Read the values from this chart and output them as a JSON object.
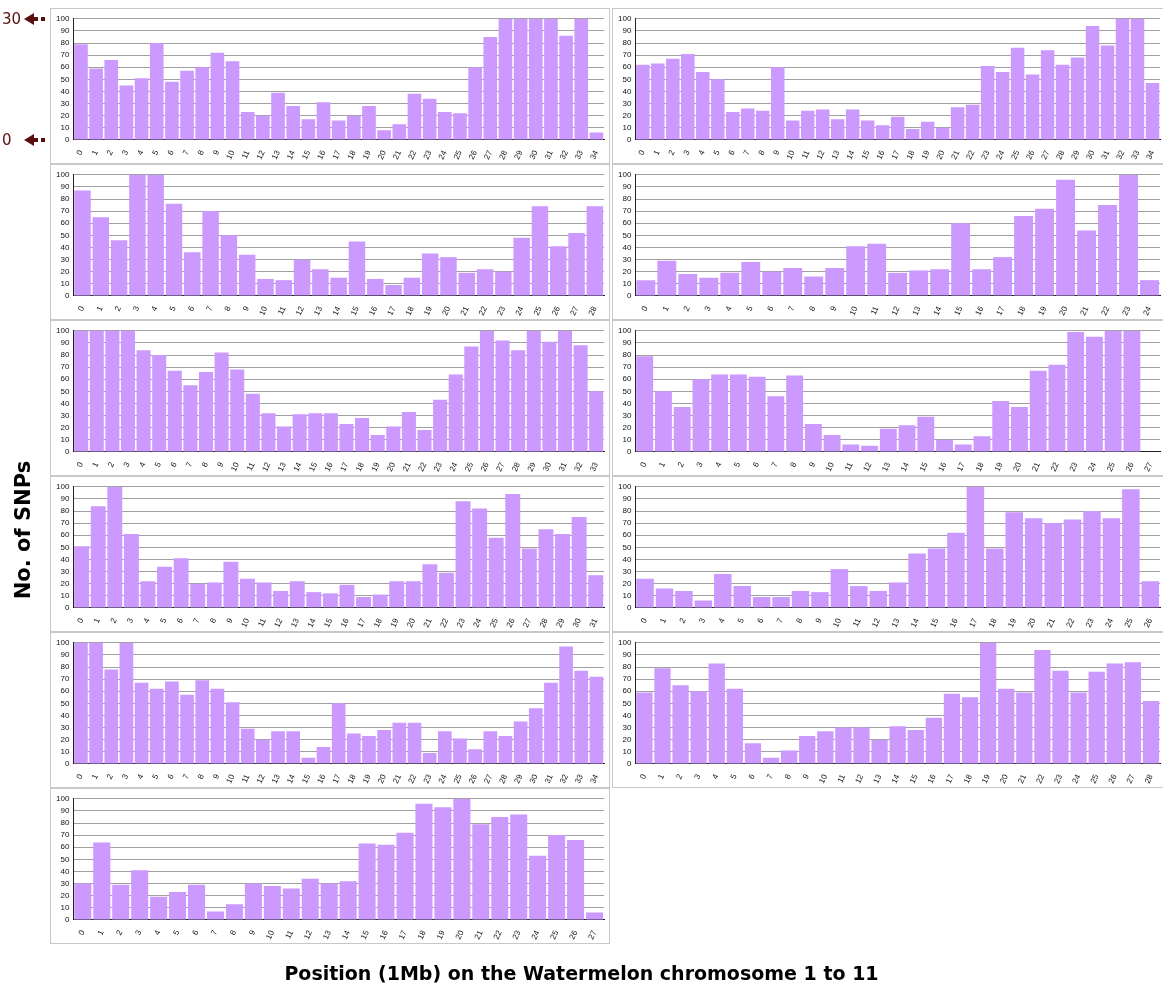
{
  "chart_data": [
    {
      "type": "bar",
      "annotations": [
        "30",
        "0"
      ],
      "categories": [
        "0",
        "1",
        "2",
        "3",
        "4",
        "5",
        "6",
        "7",
        "8",
        "9",
        "10",
        "11",
        "12",
        "13",
        "14",
        "15",
        "16",
        "17",
        "18",
        "19",
        "20",
        "21",
        "22",
        "23",
        "24",
        "25",
        "26",
        "27",
        "28",
        "29",
        "30",
        "31",
        "32",
        "33",
        "34"
      ],
      "values": [
        79,
        59,
        66,
        45,
        51,
        80,
        48,
        57,
        60,
        72,
        65,
        23,
        20,
        39,
        28,
        17,
        31,
        16,
        20,
        28,
        8,
        13,
        38,
        34,
        23,
        22,
        60,
        85,
        100,
        100,
        100,
        100,
        86,
        100,
        6
      ],
      "color": "#cc99ff",
      "ylim": [
        0,
        100
      ],
      "yticks": [
        0,
        10,
        20,
        30,
        40,
        50,
        60,
        70,
        80,
        90,
        100
      ],
      "grid": "y"
    },
    {
      "type": "bar",
      "categories": [
        "0",
        "1",
        "2",
        "3",
        "4",
        "5",
        "6",
        "7",
        "8",
        "9",
        "10",
        "11",
        "12",
        "13",
        "14",
        "15",
        "16",
        "17",
        "18",
        "19",
        "20",
        "21",
        "22",
        "23",
        "24",
        "25",
        "26",
        "27",
        "28",
        "29",
        "30",
        "31",
        "32",
        "33",
        "34"
      ],
      "values": [
        62,
        63,
        67,
        71,
        56,
        50,
        23,
        26,
        24,
        60,
        16,
        24,
        25,
        17,
        25,
        16,
        12,
        19,
        9,
        15,
        10,
        27,
        29,
        61,
        56,
        76,
        54,
        74,
        62,
        68,
        94,
        78,
        100,
        100,
        47
      ],
      "color": "#cc99ff",
      "ylim": [
        0,
        100
      ],
      "yticks": [
        0,
        10,
        20,
        30,
        40,
        50,
        60,
        70,
        80,
        90,
        100
      ],
      "grid": "y"
    },
    {
      "type": "bar",
      "categories": [
        "0",
        "1",
        "2",
        "3",
        "4",
        "5",
        "6",
        "7",
        "8",
        "9",
        "10",
        "11",
        "12",
        "13",
        "14",
        "15",
        "16",
        "17",
        "18",
        "19",
        "20",
        "21",
        "22",
        "23",
        "24",
        "25",
        "26",
        "27",
        "28"
      ],
      "values": [
        87,
        65,
        46,
        100,
        100,
        76,
        36,
        70,
        50,
        34,
        14,
        13,
        30,
        22,
        15,
        45,
        14,
        9,
        15,
        35,
        32,
        19,
        22,
        20,
        48,
        74,
        41,
        52,
        74
      ],
      "color": "#cc99ff",
      "ylim": [
        0,
        100
      ],
      "yticks": [
        0,
        10,
        20,
        30,
        40,
        50,
        60,
        70,
        80,
        90,
        100
      ],
      "grid": "y"
    },
    {
      "type": "bar",
      "categories": [
        "0",
        "1",
        "2",
        "3",
        "4",
        "5",
        "6",
        "7",
        "8",
        "9",
        "10",
        "11",
        "12",
        "13",
        "14",
        "15",
        "16",
        "17",
        "18",
        "19",
        "20",
        "21",
        "22",
        "23",
        "24"
      ],
      "values": [
        13,
        29,
        18,
        15,
        19,
        28,
        20,
        23,
        16,
        23,
        41,
        43,
        19,
        21,
        22,
        60,
        22,
        32,
        66,
        72,
        96,
        54,
        75,
        100,
        13
      ],
      "color": "#cc99ff",
      "ylim": [
        0,
        100
      ],
      "yticks": [
        0,
        10,
        20,
        30,
        40,
        50,
        60,
        70,
        80,
        90,
        100
      ],
      "grid": "y"
    },
    {
      "type": "bar",
      "categories": [
        "0",
        "1",
        "2",
        "3",
        "4",
        "5",
        "6",
        "7",
        "8",
        "9",
        "10",
        "11",
        "12",
        "13",
        "14",
        "15",
        "16",
        "17",
        "18",
        "19",
        "20",
        "21",
        "22",
        "23",
        "24",
        "25",
        "26",
        "27",
        "28",
        "29",
        "30",
        "31",
        "32",
        "33"
      ],
      "values": [
        100,
        100,
        100,
        100,
        84,
        80,
        67,
        55,
        66,
        82,
        68,
        48,
        32,
        21,
        31,
        32,
        32,
        23,
        28,
        14,
        21,
        33,
        18,
        43,
        64,
        87,
        100,
        92,
        84,
        100,
        91,
        100,
        88,
        50
      ],
      "color": "#cc99ff",
      "ylim": [
        0,
        100
      ],
      "yticks": [
        0,
        10,
        20,
        30,
        40,
        50,
        60,
        70,
        80,
        90,
        100
      ],
      "grid": "y"
    },
    {
      "type": "bar",
      "categories": [
        "0",
        "1",
        "2",
        "3",
        "4",
        "5",
        "6",
        "7",
        "8",
        "9",
        "10",
        "11",
        "12",
        "13",
        "14",
        "15",
        "16",
        "17",
        "18",
        "19",
        "20",
        "21",
        "22",
        "23",
        "24",
        "25",
        "26",
        "27"
      ],
      "values": [
        79,
        50,
        37,
        60,
        64,
        64,
        62,
        46,
        63,
        23,
        14,
        6,
        5,
        19,
        22,
        29,
        10,
        6,
        13,
        42,
        37,
        67,
        72,
        99,
        95,
        100,
        100,
        null
      ],
      "color": "#cc99ff",
      "ylim": [
        0,
        100
      ],
      "yticks": [
        0,
        10,
        20,
        30,
        40,
        50,
        60,
        70,
        80,
        90,
        100
      ],
      "grid": "y"
    },
    {
      "type": "bar",
      "ylabel": "No. of SNPs",
      "categories": [
        "0",
        "1",
        "2",
        "3",
        "4",
        "5",
        "6",
        "7",
        "8",
        "9",
        "10",
        "11",
        "12",
        "13",
        "14",
        "15",
        "16",
        "17",
        "18",
        "19",
        "20",
        "21",
        "22",
        "23",
        "24",
        "25",
        "26",
        "27",
        "28",
        "29",
        "30",
        "31"
      ],
      "values": [
        51,
        84,
        100,
        61,
        22,
        34,
        41,
        20,
        21,
        38,
        24,
        21,
        14,
        22,
        13,
        12,
        19,
        9,
        11,
        22,
        22,
        36,
        29,
        88,
        82,
        58,
        94,
        49,
        65,
        61,
        75,
        27
      ],
      "color": "#cc99ff",
      "ylim": [
        0,
        100
      ],
      "yticks": [
        0,
        10,
        20,
        30,
        40,
        50,
        60,
        70,
        80,
        90,
        100
      ],
      "grid": "y"
    },
    {
      "type": "bar",
      "categories": [
        "0",
        "1",
        "2",
        "3",
        "4",
        "5",
        "6",
        "7",
        "8",
        "9",
        "10",
        "11",
        "12",
        "13",
        "14",
        "15",
        "16",
        "17",
        "18",
        "19",
        "20",
        "21",
        "22",
        "23",
        "24",
        "25",
        "26"
      ],
      "values": [
        24,
        16,
        14,
        6,
        28,
        18,
        9,
        9,
        14,
        13,
        32,
        18,
        14,
        21,
        45,
        49,
        62,
        100,
        49,
        79,
        74,
        70,
        73,
        80,
        74,
        98,
        22
      ],
      "color": "#cc99ff",
      "ylim": [
        0,
        100
      ],
      "yticks": [
        0,
        10,
        20,
        30,
        40,
        50,
        60,
        70,
        80,
        90,
        100
      ],
      "grid": "y"
    },
    {
      "type": "bar",
      "categories": [
        "0",
        "1",
        "2",
        "3",
        "4",
        "5",
        "6",
        "7",
        "8",
        "9",
        "10",
        "11",
        "12",
        "13",
        "14",
        "15",
        "16",
        "17",
        "18",
        "19",
        "20",
        "21",
        "22",
        "23",
        "24",
        "25",
        "26",
        "27",
        "28",
        "29",
        "30",
        "31",
        "32",
        "33",
        "34"
      ],
      "values": [
        100,
        100,
        78,
        100,
        67,
        62,
        68,
        57,
        69,
        62,
        51,
        29,
        20,
        27,
        27,
        5,
        14,
        50,
        25,
        23,
        28,
        34,
        34,
        9,
        27,
        21,
        12,
        27,
        23,
        35,
        46,
        67,
        97,
        77,
        72
      ],
      "color": "#cc99ff",
      "ylim": [
        0,
        100
      ],
      "yticks": [
        0,
        10,
        20,
        30,
        40,
        50,
        60,
        70,
        80,
        90,
        100
      ],
      "grid": "y"
    },
    {
      "type": "bar",
      "categories": [
        "0",
        "1",
        "2",
        "3",
        "4",
        "5",
        "6",
        "7",
        "8",
        "9",
        "10",
        "11",
        "12",
        "13",
        "14",
        "15",
        "16",
        "17",
        "18",
        "19",
        "20",
        "21",
        "22",
        "23",
        "24",
        "25",
        "26",
        "27",
        "28"
      ],
      "values": [
        59,
        79,
        65,
        60,
        83,
        62,
        17,
        5,
        11,
        23,
        27,
        30,
        30,
        20,
        31,
        28,
        38,
        58,
        55,
        100,
        62,
        59,
        94,
        77,
        59,
        76,
        83,
        84,
        52
      ],
      "color": "#cc99ff",
      "ylim": [
        0,
        100
      ],
      "yticks": [
        0,
        10,
        20,
        30,
        40,
        50,
        60,
        70,
        80,
        90,
        100
      ],
      "grid": "y"
    },
    {
      "type": "bar",
      "xlabel": "Position (1Mb) on the Watermelon chromosome 1 to 11",
      "categories": [
        "0",
        "1",
        "2",
        "3",
        "4",
        "5",
        "6",
        "7",
        "8",
        "9",
        "10",
        "11",
        "12",
        "13",
        "14",
        "15",
        "16",
        "17",
        "18",
        "19",
        "20",
        "21",
        "22",
        "23",
        "24",
        "25",
        "26",
        "27"
      ],
      "values": [
        30,
        64,
        29,
        41,
        19,
        23,
        29,
        7,
        13,
        30,
        28,
        26,
        34,
        30,
        32,
        63,
        62,
        72,
        96,
        93,
        100,
        79,
        85,
        87,
        53,
        70,
        66,
        6
      ],
      "color": "#cc99ff",
      "ylim": [
        0,
        100
      ],
      "yticks": [
        0,
        10,
        20,
        30,
        40,
        50,
        60,
        70,
        80,
        90,
        100
      ],
      "grid": "y"
    }
  ]
}
